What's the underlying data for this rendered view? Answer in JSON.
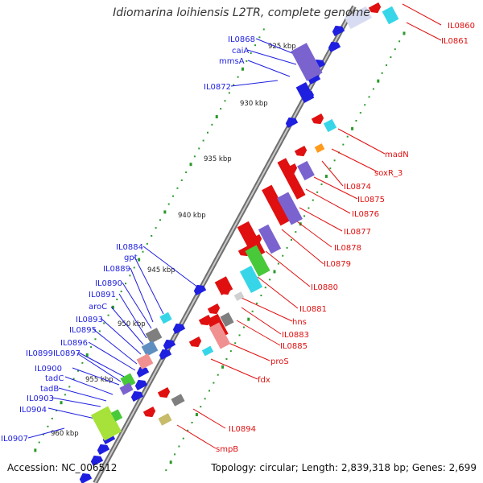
{
  "title": "Idiomarina loihiensis L2TR, complete genome",
  "footer": {
    "accession": "Accession: NC_006512",
    "topology": "Topology: circular; Length: 2,839,318 bp; Genes: 2,699"
  },
  "colors": {
    "forward": "#1f1fe0",
    "reverse": "#e01010",
    "backbone": "#9a9a9a",
    "ticks": "#2a9a2a",
    "cds_purple": "#7b63cf",
    "cds_cyan": "#36d6e8",
    "cds_green": "#47c93a",
    "cds_lime": "#a6e23a",
    "cds_gray": "#7f7f7f",
    "cds_pink": "#f09090",
    "cds_steel": "#5f8fc0",
    "cds_orange": "#ff9a1a",
    "cds_khaki": "#c8bb6a"
  },
  "scale": {
    "ticks": [
      "925 kbp",
      "930 kbp",
      "935 kbp",
      "940 kbp",
      "945 kbp",
      "950 kbp",
      "955 kbp",
      "960 kbp"
    ]
  },
  "genes_left": [
    "IL0868",
    "caiA",
    "mmsA",
    "IL0872",
    "IL0884",
    "gpt",
    "IL0889",
    "IL0890",
    "IL0891",
    "aroC",
    "IL0893",
    "IL0895",
    "IL0896",
    "IL0899",
    "IL0897",
    "IL0900",
    "tadC",
    "tadB",
    "IL0903",
    "IL0904",
    "IL0907"
  ],
  "genes_right": [
    "IL0860",
    "IL0861",
    "madN",
    "soxR_3",
    "IL0874",
    "IL0875",
    "IL0876",
    "IL0877",
    "IL0878",
    "IL0879",
    "IL0880",
    "IL0881",
    "hns",
    "IL0883",
    "IL0885",
    "proS",
    "fdx",
    "IL0894",
    "smpB"
  ]
}
